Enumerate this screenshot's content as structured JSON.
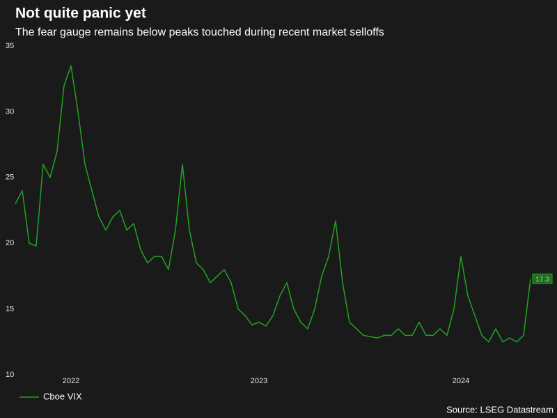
{
  "chart_data": {
    "type": "line",
    "title": "Not quite panic yet",
    "subtitle": "The fear gauge remains below peaks touched during recent market selloffs",
    "source": "Source: LSEG Datastream",
    "xlim": [
      0,
      74
    ],
    "xticks": [
      {
        "value": 8,
        "label": "2022"
      },
      {
        "value": 35,
        "label": "2023"
      },
      {
        "value": 64,
        "label": "2024"
      }
    ],
    "ylim": [
      10,
      35
    ],
    "yticks": [
      10,
      15,
      20,
      25,
      30,
      35
    ],
    "grid": false,
    "legend": "bottom-left",
    "series": [
      {
        "name": "Cboe VIX",
        "color": "#22a322",
        "values": [
          23,
          24,
          20,
          19.8,
          26,
          25,
          27,
          32,
          33.5,
          30,
          26,
          24,
          22,
          21,
          22,
          22.5,
          21,
          21.5,
          19.5,
          18.5,
          19,
          19,
          18,
          21,
          26,
          21,
          18.5,
          18,
          17,
          17.5,
          18,
          17,
          15,
          14.5,
          13.8,
          14,
          13.7,
          14.5,
          16,
          17,
          15,
          14,
          13.5,
          15,
          17.5,
          19,
          21.7,
          17,
          14,
          13.5,
          13,
          12.9,
          12.8,
          13,
          13,
          13.5,
          13,
          13,
          14,
          13,
          13,
          13.5,
          13,
          15,
          19,
          16,
          14.5,
          13,
          12.5,
          13.5,
          12.5,
          12.8,
          12.5,
          13,
          17.3
        ]
      }
    ]
  }
}
